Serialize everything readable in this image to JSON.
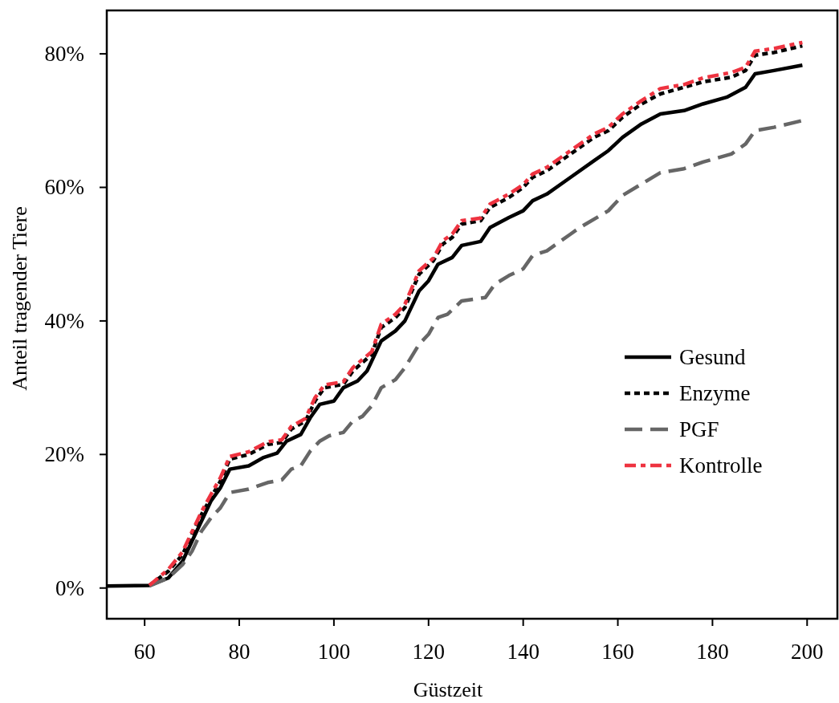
{
  "chart_data": {
    "type": "line",
    "xlabel": "Güstzeit",
    "ylabel": "Anteil tragender Tiere",
    "xlim": [
      52,
      206.4
    ],
    "xticks": [
      60,
      80,
      100,
      120,
      140,
      160,
      180,
      200
    ],
    "ylim": [
      -4.6,
      86.5
    ],
    "yticks": [
      {
        "value": 0,
        "label": "0%"
      },
      {
        "value": 20,
        "label": "20%"
      },
      {
        "value": 40,
        "label": "40%"
      },
      {
        "value": 60,
        "label": "60%"
      },
      {
        "value": 80,
        "label": "80%"
      }
    ],
    "grid": false,
    "legend": "right",
    "series": [
      {
        "name": "Gesund",
        "color": "#000000",
        "line_style": "solid",
        "x": [
          52,
          61,
          65,
          68,
          70,
          72,
          74,
          76,
          78,
          82,
          85,
          88,
          90,
          93,
          95,
          97,
          100,
          102,
          105,
          107,
          110,
          113,
          115,
          118,
          120,
          122,
          125,
          127,
          131,
          133,
          137,
          140,
          142,
          145,
          150,
          155,
          158,
          161,
          165,
          169,
          174,
          178,
          183,
          187,
          189,
          193,
          199
        ],
        "values": [
          0.3,
          0.4,
          1.5,
          4,
          7,
          10,
          13,
          15,
          17.8,
          18.3,
          19.5,
          20.2,
          22,
          23,
          25.5,
          27.5,
          28,
          30,
          31,
          32.5,
          37,
          38.5,
          40,
          44.5,
          46,
          48.5,
          49.5,
          51.3,
          51.9,
          54,
          55.5,
          56.5,
          58,
          59,
          61.5,
          64,
          65.5,
          67.5,
          69.5,
          71,
          71.5,
          72.5,
          73.5,
          75,
          77,
          77.5,
          78.3
        ]
      },
      {
        "name": "Enzyme",
        "color": "#000000",
        "line_style": "dotted",
        "x": [
          61,
          65,
          68,
          70,
          72,
          74,
          76,
          78,
          82,
          86,
          89,
          91,
          94,
          96,
          98,
          102,
          104,
          108,
          110,
          113,
          115,
          118,
          121,
          123,
          125,
          127,
          131,
          133,
          137,
          140,
          142,
          145,
          150,
          155,
          158,
          161,
          165,
          169,
          174,
          178,
          184,
          187,
          189,
          193,
          199
        ],
        "values": [
          0.4,
          2.5,
          5,
          8,
          11,
          13.5,
          16,
          19.3,
          20,
          21.5,
          21.8,
          23.8,
          25,
          28,
          30,
          30.5,
          32.5,
          35,
          39,
          40.5,
          42,
          47,
          49,
          51.5,
          52.5,
          54.5,
          55,
          57,
          58.5,
          60,
          61.5,
          62.5,
          65,
          67.5,
          68.5,
          70.5,
          72.5,
          74,
          75,
          75.8,
          76.5,
          77.5,
          79.8,
          80.2,
          81.2
        ]
      },
      {
        "name": "PGF",
        "color": "#666666",
        "line_style": "dashed",
        "x": [
          61,
          65,
          68,
          70,
          72,
          74,
          76,
          78,
          82,
          86,
          89,
          91,
          93,
          95,
          97,
          99,
          102,
          104,
          106,
          108,
          110,
          113,
          115,
          118,
          120,
          122,
          124,
          127,
          132,
          134,
          137,
          140,
          142,
          145,
          150,
          152,
          158,
          161,
          165,
          169,
          174,
          178,
          184,
          187,
          189,
          193,
          199
        ],
        "values": [
          0.3,
          1.5,
          3.5,
          5.5,
          8.5,
          10.5,
          12,
          14.3,
          14.8,
          15.8,
          16.2,
          17.8,
          18.3,
          20.5,
          22,
          22.8,
          23.3,
          25,
          25.7,
          27.3,
          30,
          31.2,
          33,
          36.5,
          38,
          40.5,
          41,
          43,
          43.5,
          45.5,
          46.8,
          47.8,
          49.8,
          50.5,
          53,
          54,
          56.5,
          58.8,
          60.5,
          62.2,
          62.8,
          63.8,
          65,
          66.5,
          68.5,
          69,
          70
        ]
      },
      {
        "name": "Kontrolle",
        "color": "#ee3340",
        "line_style": "dashdot",
        "x": [
          61,
          65,
          68,
          70,
          72,
          74,
          76,
          78,
          82,
          86,
          89,
          91,
          94,
          96,
          98,
          102,
          104,
          108,
          110,
          113,
          115,
          118,
          121,
          123,
          125,
          127,
          131,
          133,
          137,
          140,
          142,
          145,
          150,
          155,
          158,
          161,
          165,
          169,
          174,
          178,
          184,
          187,
          189,
          193,
          199
        ],
        "values": [
          0.4,
          2.8,
          5.4,
          8.4,
          11.4,
          14,
          16.5,
          19.7,
          20.4,
          21.9,
          22.2,
          24.2,
          25.4,
          28.5,
          30.4,
          30.9,
          33,
          35.4,
          39.5,
          41,
          42.5,
          47.5,
          49.4,
          52,
          53,
          55,
          55.4,
          57.5,
          59,
          60.4,
          62,
          63,
          65.5,
          68,
          69,
          71,
          73,
          74.8,
          75.4,
          76.4,
          77.2,
          78,
          80.4,
          80.8,
          81.7
        ]
      }
    ]
  }
}
